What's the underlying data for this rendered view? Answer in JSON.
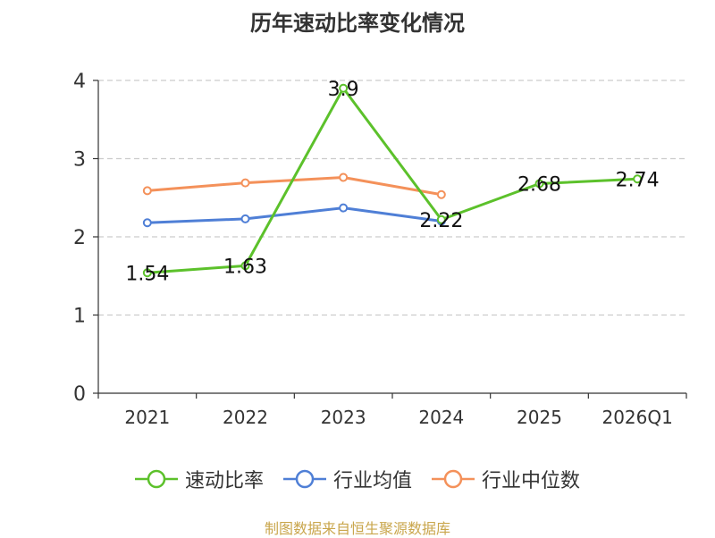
{
  "chart_data": {
    "type": "line",
    "title": "历年速动比率变化情况",
    "categories": [
      "2021",
      "2022",
      "2023",
      "2024",
      "2025",
      "2026Q1"
    ],
    "ylim": [
      0,
      4
    ],
    "yticks": [
      "0",
      "1",
      "2",
      "3",
      "4"
    ],
    "series": [
      {
        "name": "速动比率",
        "color": "#5cc12b",
        "values": [
          1.54,
          1.63,
          3.9,
          2.22,
          2.68,
          2.74
        ],
        "labels": [
          "1.54",
          "1.63",
          "3.9",
          "2.22",
          "2.68",
          "2.74"
        ],
        "show_labels": true
      },
      {
        "name": "行业均值",
        "color": "#4f7fd6",
        "values": [
          2.18,
          2.23,
          2.37,
          2.2,
          null,
          null
        ],
        "show_labels": false
      },
      {
        "name": "行业中位数",
        "color": "#f4915a",
        "values": [
          2.59,
          2.69,
          2.76,
          2.54,
          null,
          null
        ],
        "show_labels": false
      }
    ],
    "grid": "horizontal-dashed",
    "legend_position": "bottom"
  },
  "source": "制图数据来自恒生聚源数据库"
}
